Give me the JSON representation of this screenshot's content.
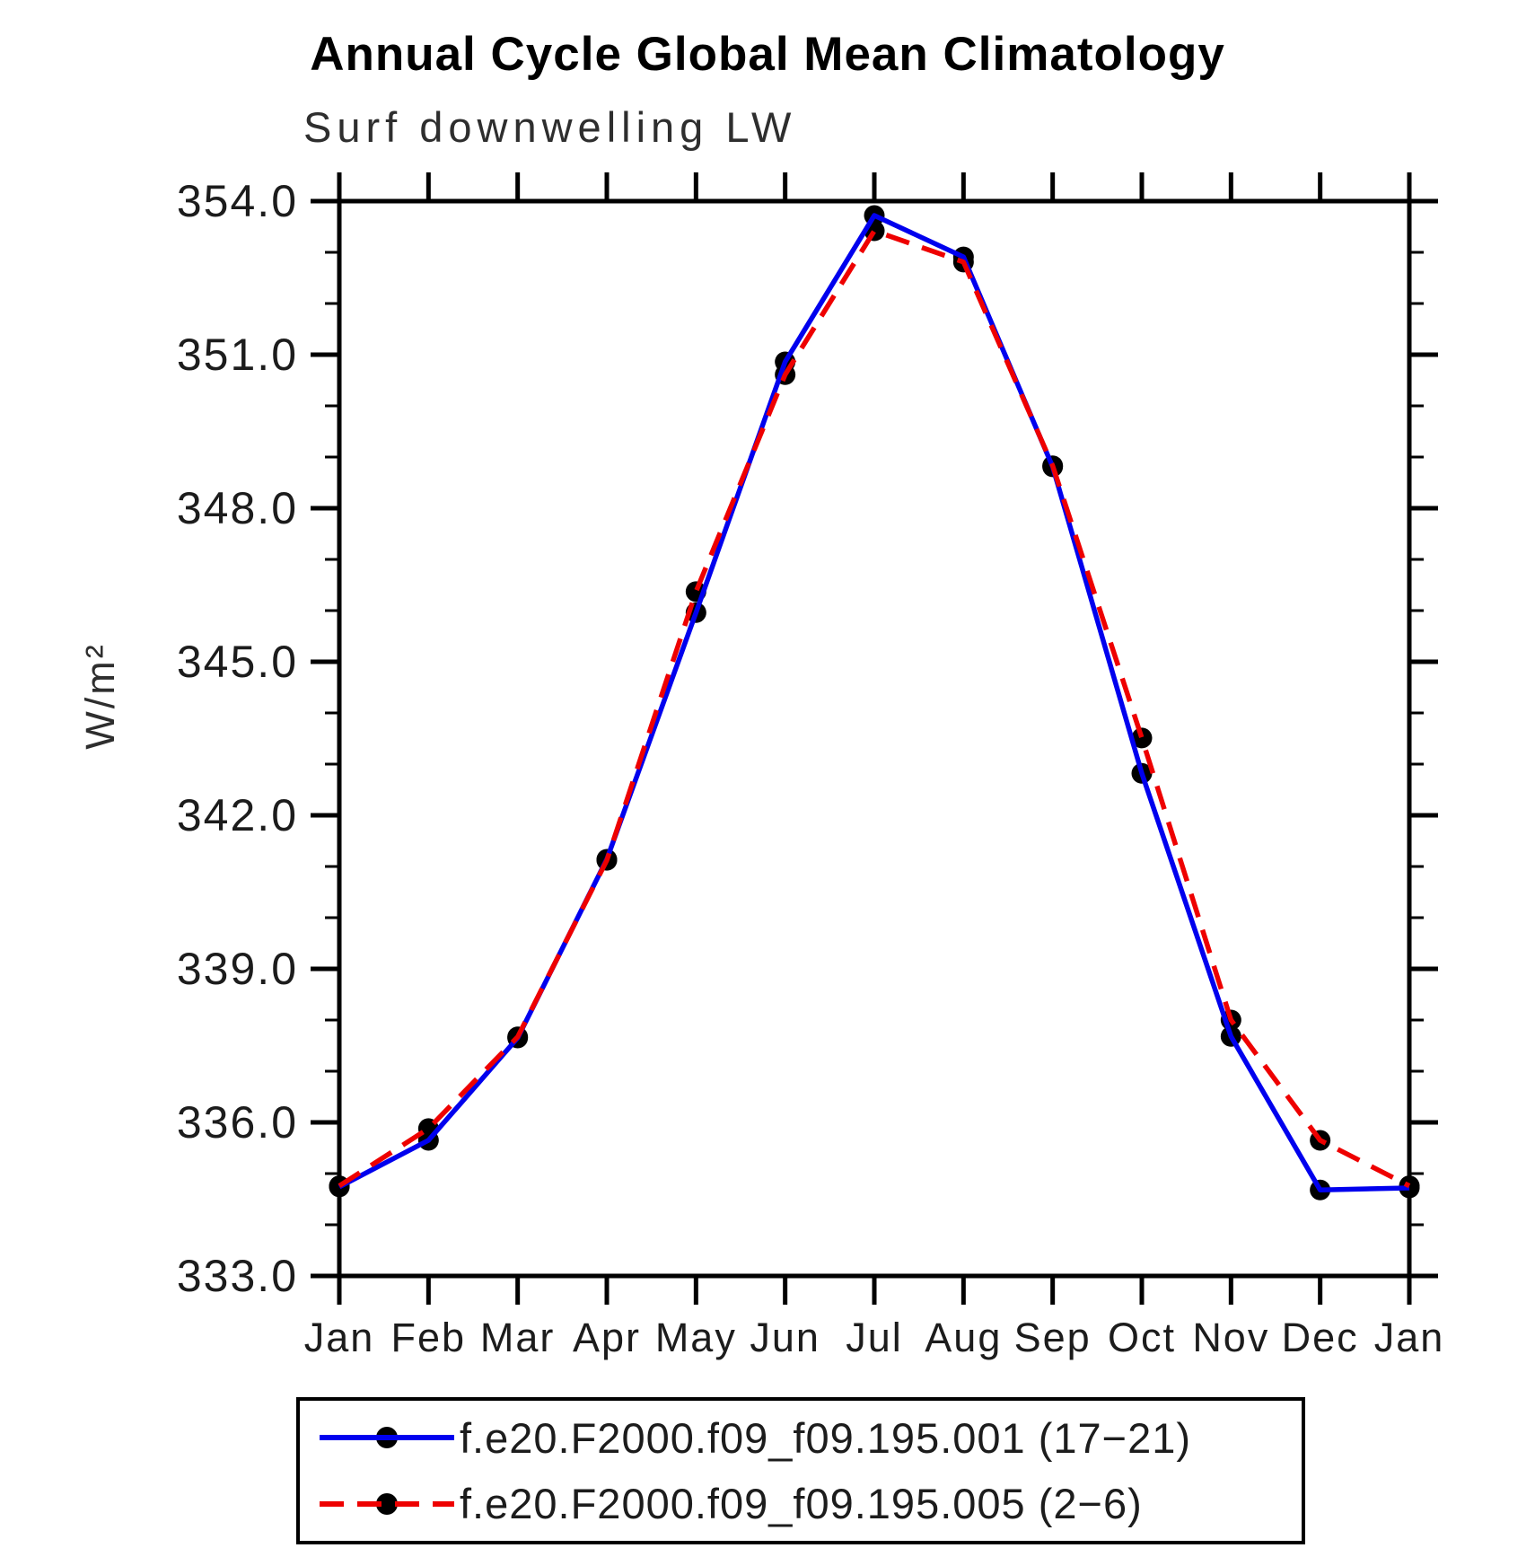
{
  "title": "Annual Cycle Global Mean Climatology",
  "subtitle": "Surf downwelling LW",
  "chart_data": {
    "type": "line",
    "title": "Annual Cycle Global Mean Climatology",
    "subtitle": "Surf downwelling LW",
    "xlabel": "",
    "ylabel": "W/m²",
    "categories": [
      "Jan",
      "Feb",
      "Mar",
      "Apr",
      "May",
      "Jun",
      "Jul",
      "Aug",
      "Sep",
      "Oct",
      "Nov",
      "Dec",
      "Jan"
    ],
    "ylim": [
      333.0,
      354.0
    ],
    "ytick_major_interval": 3.0,
    "ytick_minor_interval": 1.0,
    "ytick_labels": [
      "333.0",
      "336.0",
      "339.0",
      "342.0",
      "345.0",
      "348.0",
      "351.0",
      "354.0"
    ],
    "grid": false,
    "legend_position": "bottom",
    "axis_color": "#000000",
    "marker_color": "#000000",
    "series": [
      {
        "name": "f.e20.F2000.f09_f09.195.001 (17−21)",
        "color": "#0000ee",
        "style": "solid",
        "marker": "circle",
        "marker_color": "#000000",
        "values": [
          334.74,
          335.65,
          337.65,
          341.14,
          345.96,
          350.86,
          353.72,
          352.91,
          348.81,
          342.82,
          337.68,
          334.68,
          334.72
        ]
      },
      {
        "name": "f.e20.F2000.f09_f09.195.005 (2−6)",
        "color": "#ee0000",
        "style": "dashed",
        "marker": "circle",
        "marker_color": "#000000",
        "values": [
          334.76,
          335.88,
          337.67,
          341.12,
          346.37,
          350.61,
          353.42,
          352.81,
          348.83,
          343.51,
          338.0,
          335.65,
          334.76
        ]
      }
    ]
  }
}
